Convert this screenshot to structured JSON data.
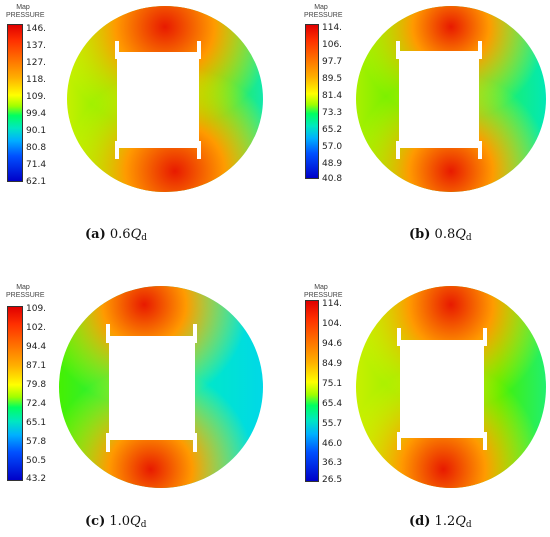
{
  "colors": {
    "red": "#e81a00",
    "orange": "#ff9a00",
    "yellow": "#f4f000",
    "green": "#46f000",
    "cyan": "#00e8c8",
    "white": "#ffffff"
  },
  "panels": [
    {
      "legend_title": "Map",
      "legend_subtitle": "PRESSURE",
      "ticks": [
        "146.",
        "137.",
        "127.",
        "118.",
        "109.",
        "99.4",
        "90.1",
        "80.8",
        "71.4",
        "62.1"
      ],
      "caption": {
        "letter": "(a)",
        "value": "0.6",
        "symbol": "Q",
        "subscript": "d"
      }
    },
    {
      "legend_title": "Map",
      "legend_subtitle": "PRESSURE",
      "ticks": [
        "114.",
        "106.",
        "97.7",
        "89.5",
        "81.4",
        "73.3",
        "65.2",
        "57.0",
        "48.9",
        "40.8"
      ],
      "caption": {
        "letter": "(b)",
        "value": "0.8",
        "symbol": "Q",
        "subscript": "d"
      }
    },
    {
      "legend_title": "Map",
      "legend_subtitle": "PRESSURE",
      "ticks": [
        "109.",
        "102.",
        "94.4",
        "87.1",
        "79.8",
        "72.4",
        "65.1",
        "57.8",
        "50.5",
        "43.2"
      ],
      "caption": {
        "letter": "(c)",
        "value": "1.0",
        "symbol": "Q",
        "subscript": "d"
      }
    },
    {
      "legend_title": "Map",
      "legend_subtitle": "PRESSURE",
      "ticks": [
        "114.",
        "104.",
        "94.6",
        "84.9",
        "75.1",
        "65.4",
        "55.7",
        "46.0",
        "36.3",
        "26.5"
      ],
      "caption": {
        "letter": "(d)",
        "value": "1.2",
        "symbol": "Q",
        "subscript": "d"
      }
    }
  ]
}
